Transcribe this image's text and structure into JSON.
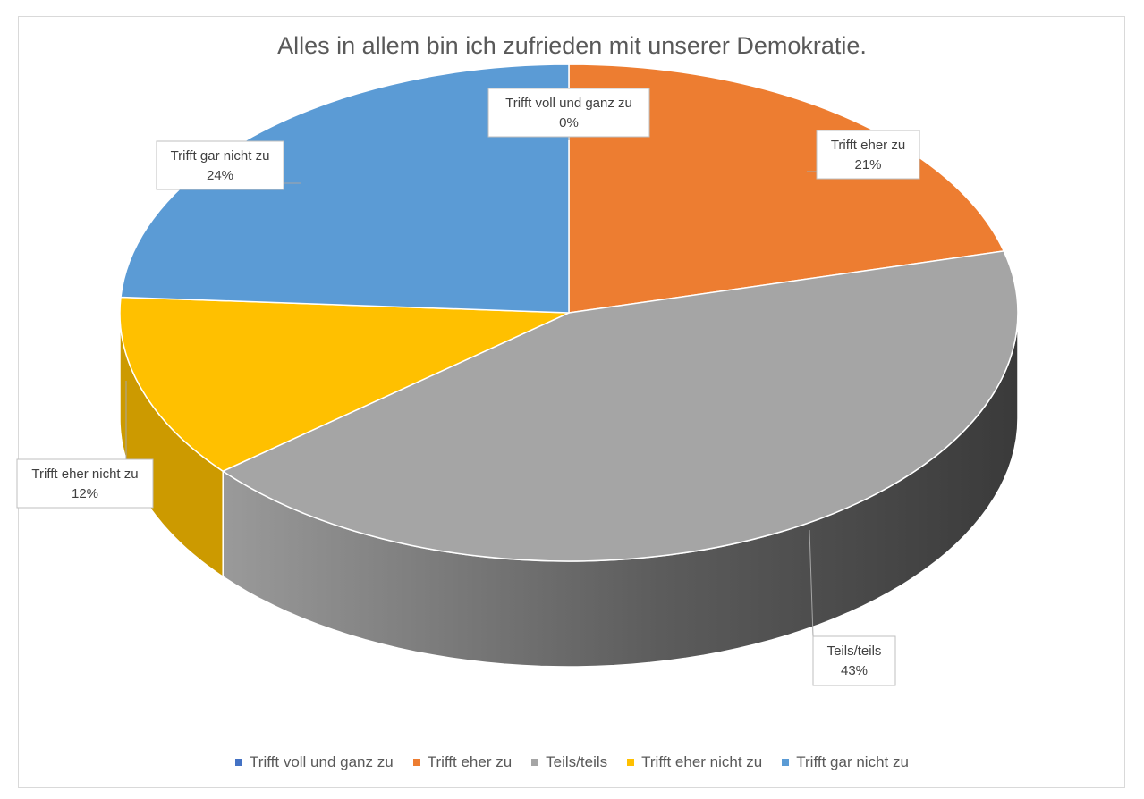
{
  "chart_data": {
    "type": "pie",
    "title": "Alles in allem bin ich zufrieden mit unserer Demokratie.",
    "categories": [
      "Trifft voll und ganz zu",
      "Trifft eher zu",
      "Teils/teils",
      "Trifft eher nicht zu",
      "Trifft gar nicht zu"
    ],
    "values": [
      0,
      21,
      43,
      12,
      24
    ],
    "value_labels": [
      "0%",
      "21%",
      "43%",
      "12%",
      "24%"
    ],
    "colors": [
      "#4472c4",
      "#ed7d31",
      "#a5a5a5",
      "#ffc000",
      "#5b9bd5"
    ],
    "legend": "bottom",
    "style": "3d-pie-with-callouts"
  }
}
